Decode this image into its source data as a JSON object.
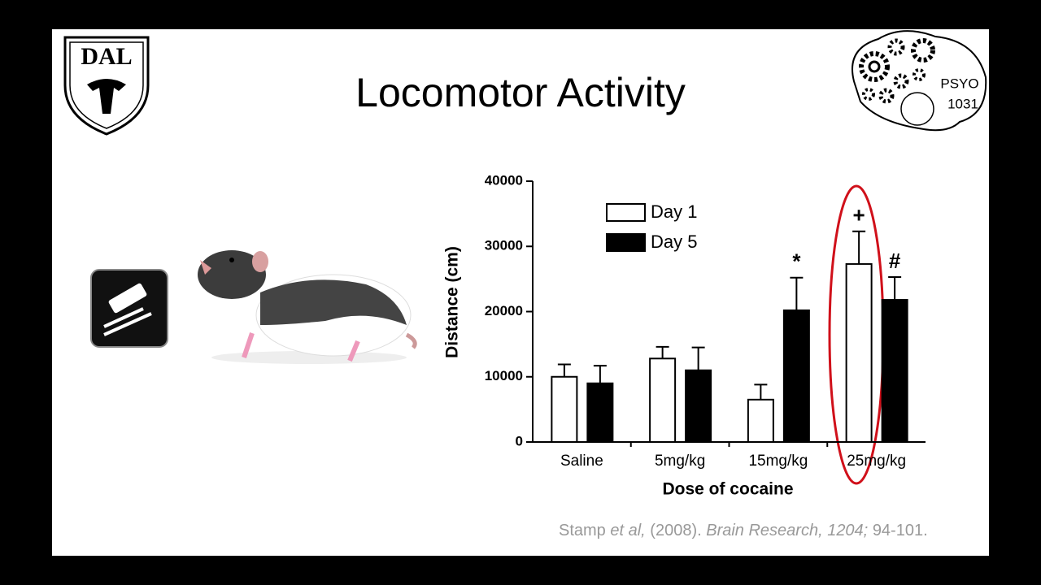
{
  "slide": {
    "title": "Locomotor Activity",
    "logo_left": "DAL",
    "logo_right": [
      "PSYO",
      "1031"
    ],
    "citation": {
      "authors": "Stamp",
      "etal": "et al,",
      "year": "(2008).",
      "journal": "Brain Research, 1204;",
      "pages": "94-101."
    }
  },
  "chart_data": {
    "type": "bar",
    "x_label": "Dose of cocaine",
    "y_label": "Distance (cm)",
    "categories": [
      "Saline",
      "5mg/kg",
      "15mg/kg",
      "25mg/kg"
    ],
    "series": [
      {
        "name": "Day 1",
        "color": "#ffffff",
        "values": [
          10000,
          12800,
          6500,
          27300
        ],
        "errors": [
          1900,
          1800,
          2300,
          5000
        ],
        "markers": [
          null,
          null,
          null,
          "+"
        ]
      },
      {
        "name": "Day 5",
        "color": "#000000",
        "values": [
          9000,
          11000,
          20200,
          21800
        ],
        "errors": [
          2700,
          3500,
          5000,
          3500
        ],
        "markers": [
          null,
          null,
          "*",
          "#"
        ]
      }
    ],
    "ylim": [
      0,
      40000
    ],
    "yticks": [
      0,
      10000,
      20000,
      30000,
      40000
    ],
    "grid": false,
    "legend": "upper-left"
  }
}
